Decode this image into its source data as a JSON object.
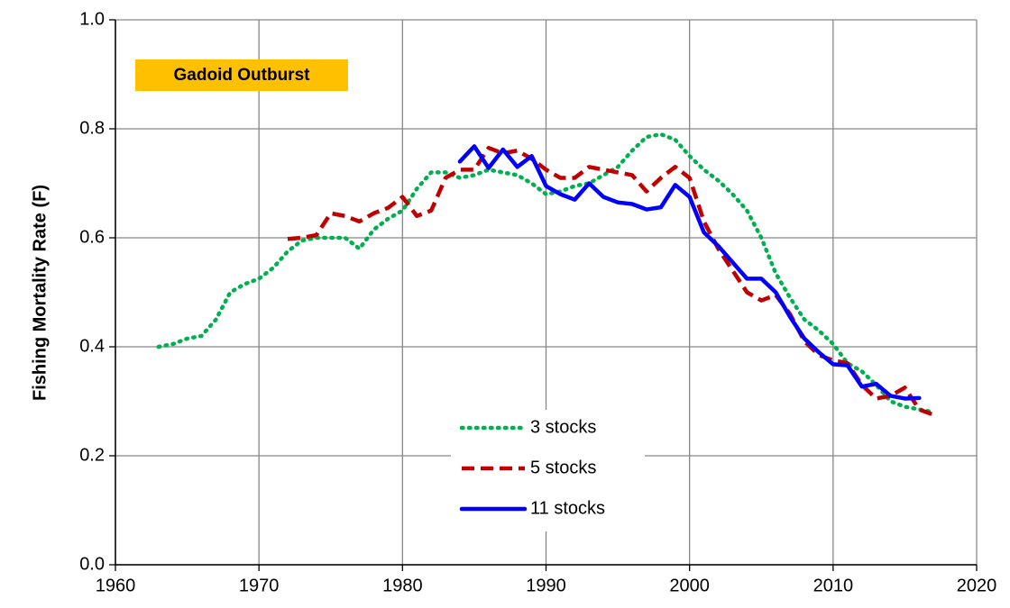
{
  "chart_data": {
    "type": "line",
    "ylabel": "Fishing Mortality Rate (F)",
    "annotation": "Gadoid Outburst",
    "x": [
      1963,
      1964,
      1965,
      1966,
      1967,
      1968,
      1969,
      1970,
      1971,
      1972,
      1973,
      1974,
      1975,
      1976,
      1977,
      1978,
      1979,
      1980,
      1981,
      1982,
      1983,
      1984,
      1985,
      1986,
      1987,
      1988,
      1989,
      1990,
      1991,
      1992,
      1993,
      1994,
      1995,
      1996,
      1997,
      1998,
      1999,
      2000,
      2001,
      2002,
      2003,
      2004,
      2005,
      2006,
      2007,
      2008,
      2009,
      2010,
      2011,
      2012,
      2013,
      2014,
      2015,
      2016,
      2017
    ],
    "series": [
      {
        "name": "3 stocks",
        "color": "#00b050",
        "dash": "dotted",
        "values": [
          0.4,
          0.405,
          0.415,
          0.42,
          0.45,
          0.5,
          0.515,
          0.525,
          0.545,
          0.575,
          0.595,
          0.6,
          0.6,
          0.6,
          0.58,
          0.615,
          0.635,
          0.65,
          0.69,
          0.72,
          0.72,
          0.71,
          0.715,
          0.725,
          0.72,
          0.715,
          0.7,
          0.68,
          0.685,
          0.695,
          0.7,
          0.715,
          0.73,
          0.76,
          0.785,
          0.79,
          0.78,
          0.75,
          0.725,
          0.705,
          0.68,
          0.65,
          0.6,
          0.535,
          0.49,
          0.45,
          0.43,
          0.405,
          0.37,
          0.355,
          0.33,
          0.3,
          0.29,
          0.285,
          0.28
        ]
      },
      {
        "name": "5 stocks",
        "color": "#c00000",
        "dash": "dashed",
        "values": [
          null,
          null,
          null,
          null,
          null,
          null,
          null,
          null,
          null,
          0.598,
          0.6,
          0.605,
          0.645,
          0.64,
          0.63,
          0.645,
          0.655,
          0.675,
          0.64,
          0.65,
          0.71,
          0.725,
          0.725,
          0.765,
          0.755,
          0.76,
          0.745,
          0.725,
          0.71,
          0.71,
          0.73,
          0.725,
          0.72,
          0.715,
          0.685,
          0.71,
          0.73,
          0.71,
          0.63,
          0.58,
          0.54,
          0.5,
          0.485,
          0.495,
          0.46,
          0.41,
          0.385,
          0.375,
          0.37,
          0.33,
          0.305,
          0.31,
          0.325,
          0.285,
          0.275
        ]
      },
      {
        "name": "11 stocks",
        "color": "#0000ff",
        "dash": "solid",
        "values": [
          null,
          null,
          null,
          null,
          null,
          null,
          null,
          null,
          null,
          null,
          null,
          null,
          null,
          null,
          null,
          null,
          null,
          null,
          null,
          null,
          null,
          0.74,
          0.768,
          0.728,
          0.762,
          0.73,
          0.75,
          0.695,
          0.68,
          0.67,
          0.7,
          0.675,
          0.665,
          0.662,
          0.652,
          0.656,
          0.697,
          0.675,
          0.61,
          0.585,
          0.555,
          0.525,
          0.525,
          0.5,
          0.455,
          0.415,
          0.39,
          0.368,
          0.366,
          0.327,
          0.332,
          0.31,
          0.305,
          0.306,
          null
        ]
      }
    ],
    "xlim": [
      1960,
      2020
    ],
    "xticks": [
      1960,
      1970,
      1980,
      1990,
      2000,
      2010,
      2020
    ],
    "ylim": [
      0,
      1
    ],
    "yticks": [
      {
        "value": 0,
        "label": "0.0"
      },
      0.2,
      0.4,
      0.6,
      0.8,
      {
        "value": 1,
        "label": "1.0"
      }
    ],
    "grid": true
  }
}
